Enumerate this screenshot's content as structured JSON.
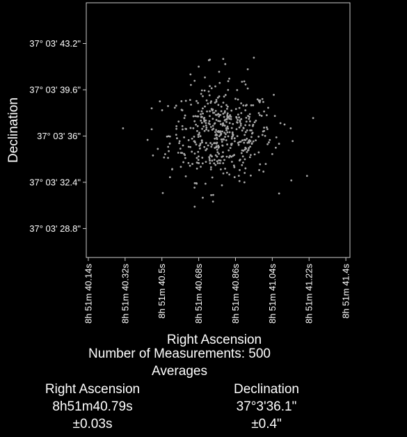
{
  "chart_data": {
    "type": "scatter",
    "title": "",
    "xlabel": "Right Ascension",
    "ylabel": "Declination",
    "xlim_seconds": [
      40.13,
      41.42
    ],
    "ylim_arcsec": [
      26.55,
      46.37
    ],
    "x_tick_values_seconds": [
      40.14,
      40.32,
      40.5,
      40.68,
      40.86,
      41.04,
      41.22,
      41.4
    ],
    "x_tick_labels": [
      "8h 51m 40.14s",
      "8h 51m 40.32s",
      "8h 51m 40.5s",
      "8h 51m 40.68s",
      "8h 51m 40.86s",
      "8h 51m 41.04s",
      "8h 51m 41.22s",
      "8h 51m 41.4s"
    ],
    "y_tick_values_arcsec": [
      43.2,
      39.6,
      36.0,
      32.4,
      28.8
    ],
    "y_tick_labels": [
      "37° 03' 43.2\"",
      "37° 03' 39.6\"",
      "37° 03' 36\"",
      "37° 03' 32.4\"",
      "37° 03' 28.8\""
    ],
    "grid": false,
    "legend": "none",
    "colors": {
      "background": "#000000",
      "frame": "#cccccc",
      "points": "#a9a9a9",
      "text": "#ffffff"
    },
    "series": [
      {
        "name": "",
        "x_seconds": [
          40.31,
          40.43,
          40.48,
          40.49,
          40.53,
          40.55,
          40.57,
          40.58,
          40.6,
          40.61,
          40.63,
          40.64,
          40.66,
          40.67,
          40.69,
          40.7,
          40.72,
          40.73,
          40.74,
          40.75,
          40.76,
          40.77,
          40.79,
          40.8,
          40.82,
          40.84,
          40.86,
          40.88,
          40.9,
          40.92,
          40.94,
          40.96,
          40.98,
          41.0,
          41.02,
          41.04,
          41.06,
          41.08,
          41.1,
          41.13,
          41.21,
          41.24,
          40.68,
          40.78,
          40.92,
          40.95,
          40.7,
          40.75,
          40.66,
          40.81
        ],
        "y_arcsec": [
          36.6,
          35.7,
          35.0,
          38.7,
          34.3,
          33.4,
          36.1,
          34.7,
          38.0,
          37.4,
          33.9,
          40.8,
          35.6,
          32.3,
          37.7,
          39.1,
          35.0,
          41.9,
          33.4,
          36.8,
          38.6,
          34.4,
          36.2,
          42.0,
          37.5,
          35.3,
          38.9,
          34.1,
          36.6,
          39.7,
          35.4,
          37.2,
          33.8,
          36.4,
          38.2,
          34.6,
          35.9,
          37.0,
          36.9,
          36.6,
          32.9,
          37.4,
          41.4,
          41.0,
          41.2,
          42.1,
          31.2,
          30.9,
          40.3,
          41.6
        ]
      }
    ],
    "total_points": 500,
    "distribution": {
      "center_seconds": 40.79,
      "sigma_seconds": 0.18,
      "center_arcsec": 36.1,
      "sigma_arcsec": 2.1
    }
  },
  "stats": {
    "count_line": "Number of Measurements: 500",
    "averages_title": "Averages",
    "ra": {
      "heading": "Right Ascension",
      "value": "8h51m40.79s",
      "error": "±0.03s"
    },
    "dec": {
      "heading": "Declination",
      "value": "37°3'36.1\"",
      "error": "±0.4\""
    }
  }
}
